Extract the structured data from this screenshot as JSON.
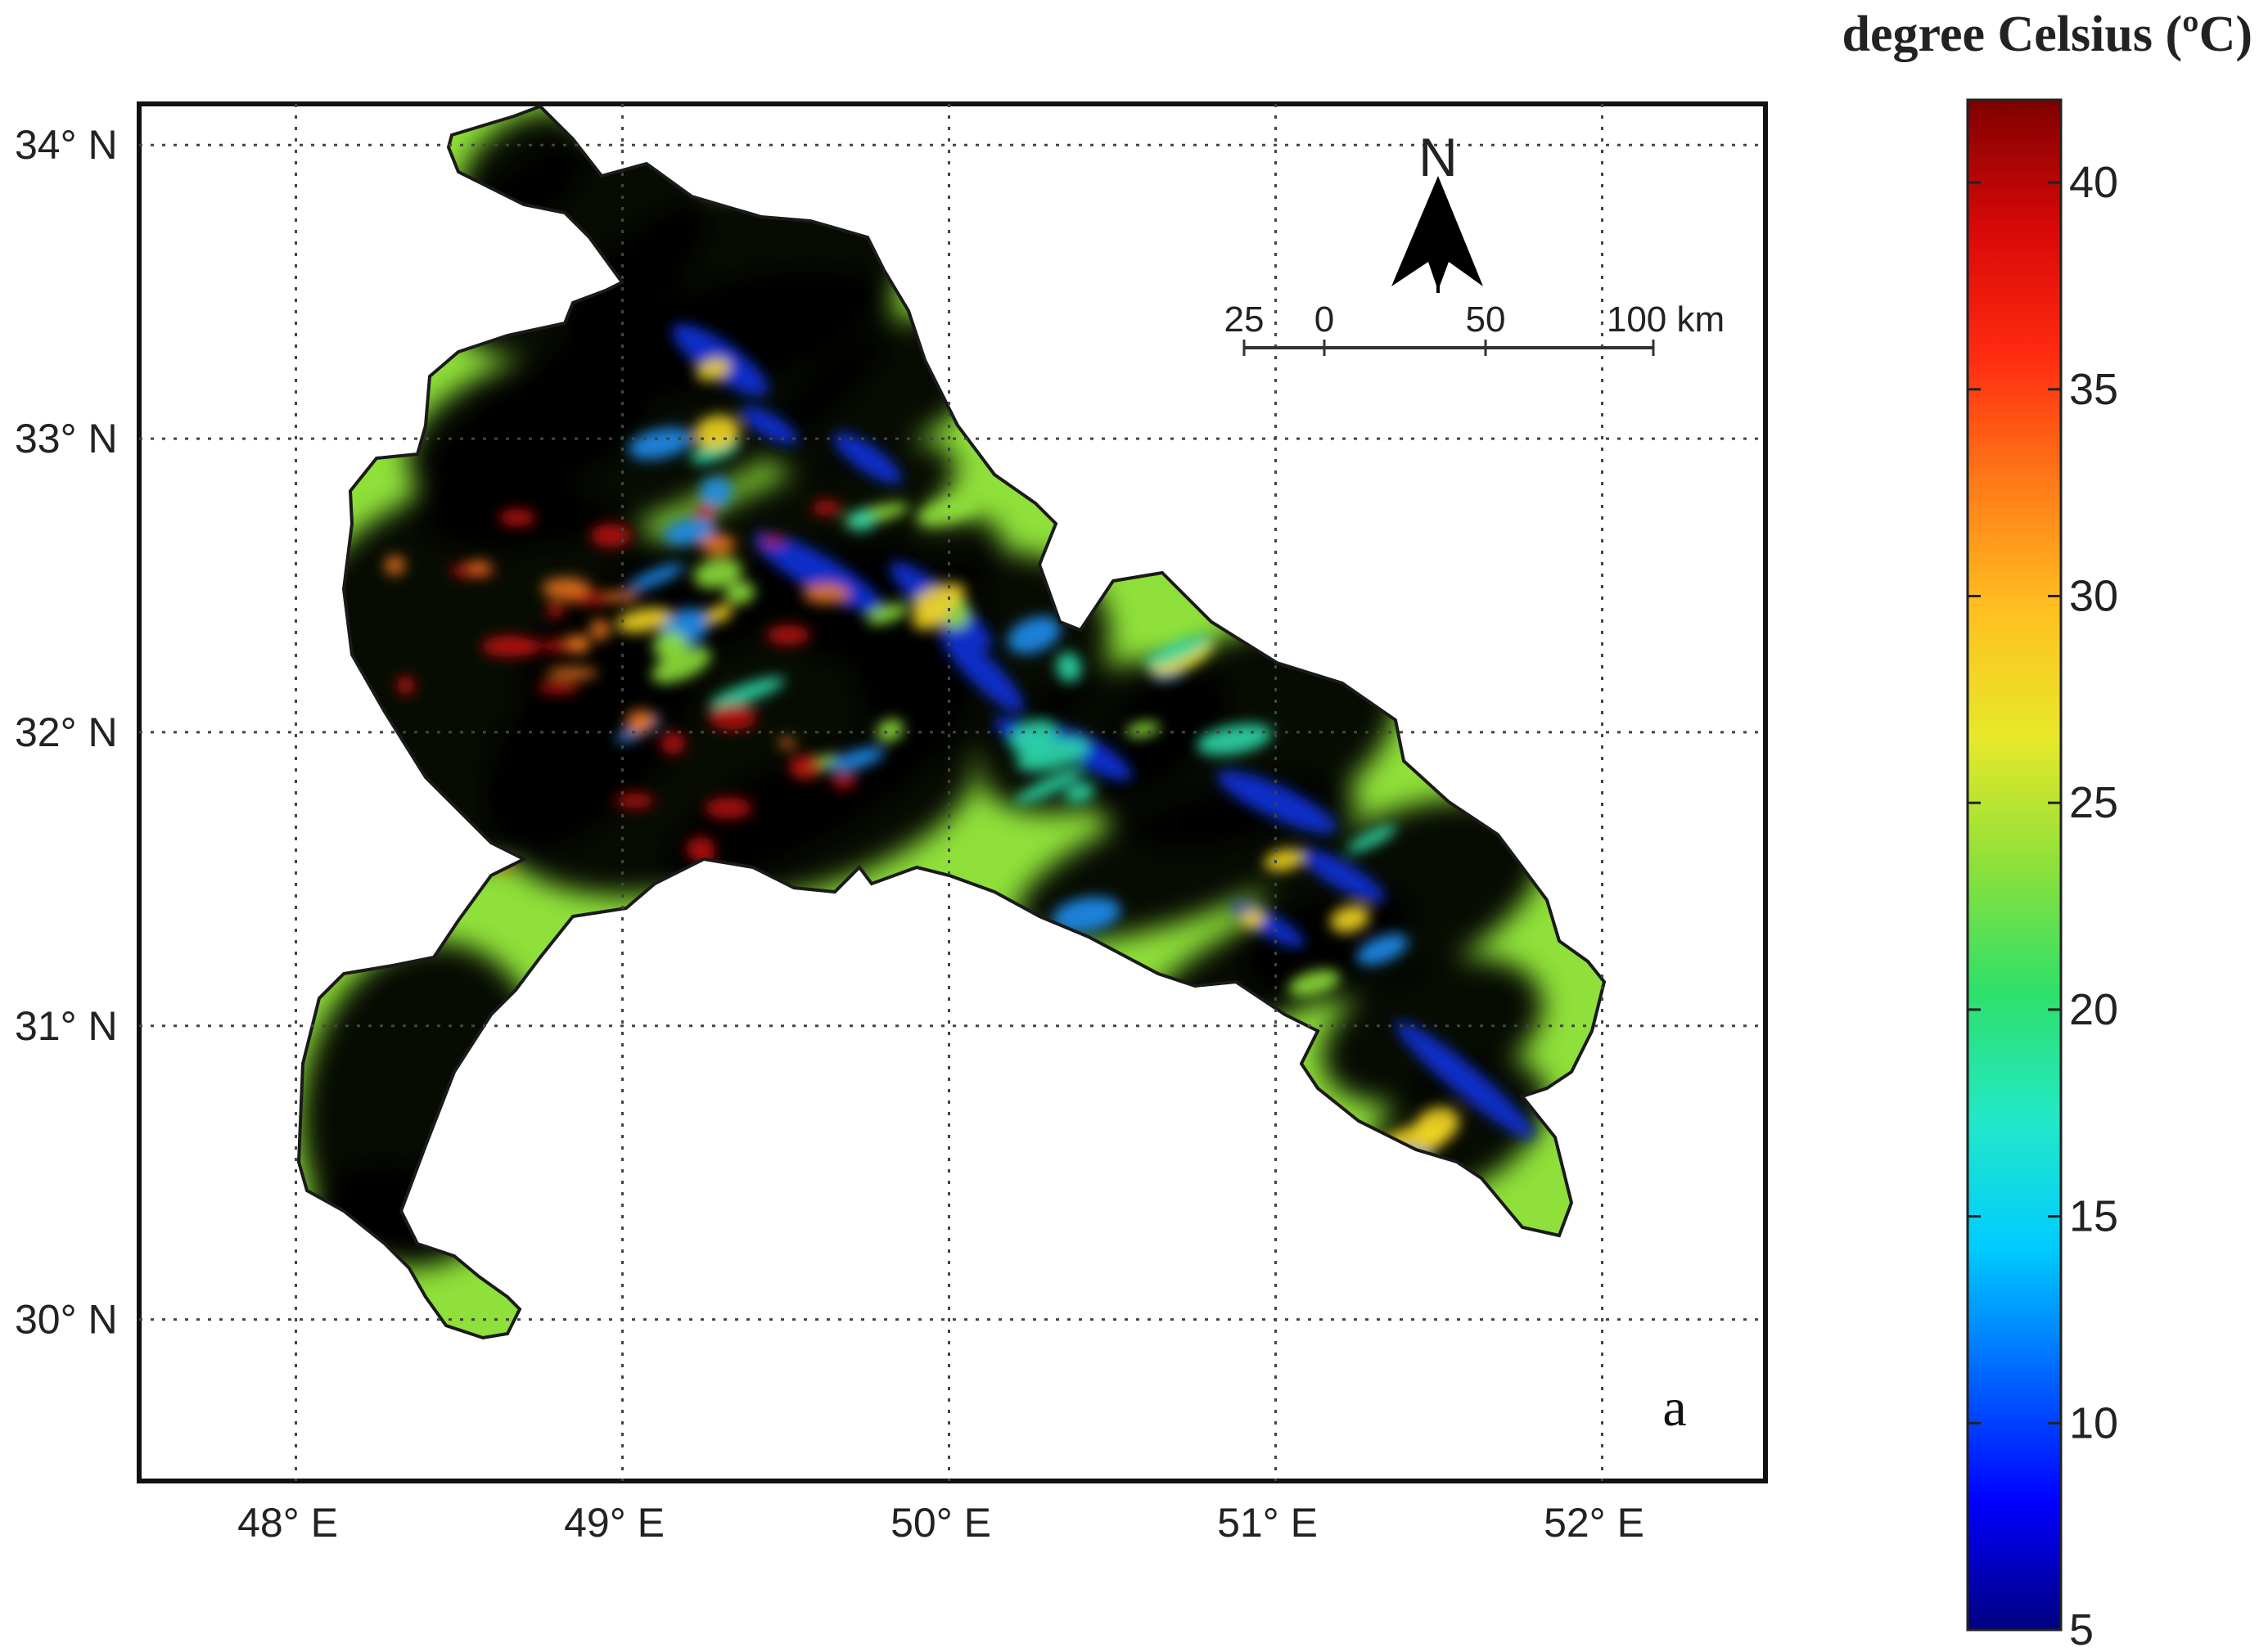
{
  "legend": {
    "title": "degree Celsius (ºC)",
    "ticks": [
      5,
      10,
      15,
      20,
      25,
      30,
      35,
      40
    ],
    "min": 5,
    "max": 42,
    "stops": [
      "#00007f",
      "#0000ff",
      "#0066ff",
      "#00ccff",
      "#22e8c8",
      "#2ee06a",
      "#8ee03a",
      "#e8e82a",
      "#ffc020",
      "#ff7a18",
      "#ff2a10",
      "#d80808",
      "#7f0000"
    ]
  },
  "map": {
    "lat_labels": [
      {
        "value": 34,
        "text": "34° N"
      },
      {
        "value": 33,
        "text": "33° N"
      },
      {
        "value": 32,
        "text": "32° N"
      },
      {
        "value": 31,
        "text": "31° N"
      },
      {
        "value": 30,
        "text": "30° N"
      }
    ],
    "lon_labels": [
      {
        "value": 48,
        "text": "48° E"
      },
      {
        "value": 49,
        "text": "49° E"
      },
      {
        "value": 50,
        "text": "50° E"
      },
      {
        "value": 51,
        "text": "51° E"
      },
      {
        "value": 52,
        "text": "52° E"
      }
    ],
    "lon_range": [
      47.52,
      52.5
    ],
    "lat_range": [
      29.45,
      34.14
    ],
    "panel_label": "a",
    "north_label": "N",
    "scale_bar": {
      "labels": [
        "25",
        "0",
        "50",
        "100 km"
      ]
    },
    "grid": true
  },
  "colors": {
    "hot": "#e81e12",
    "warm": "#f2d524",
    "mild": "#8fe03a",
    "cool": "#2fd8a8",
    "cold": "#1f8ef0",
    "coldest": "#0f2fc8",
    "boundary": "#1a1a1a"
  }
}
